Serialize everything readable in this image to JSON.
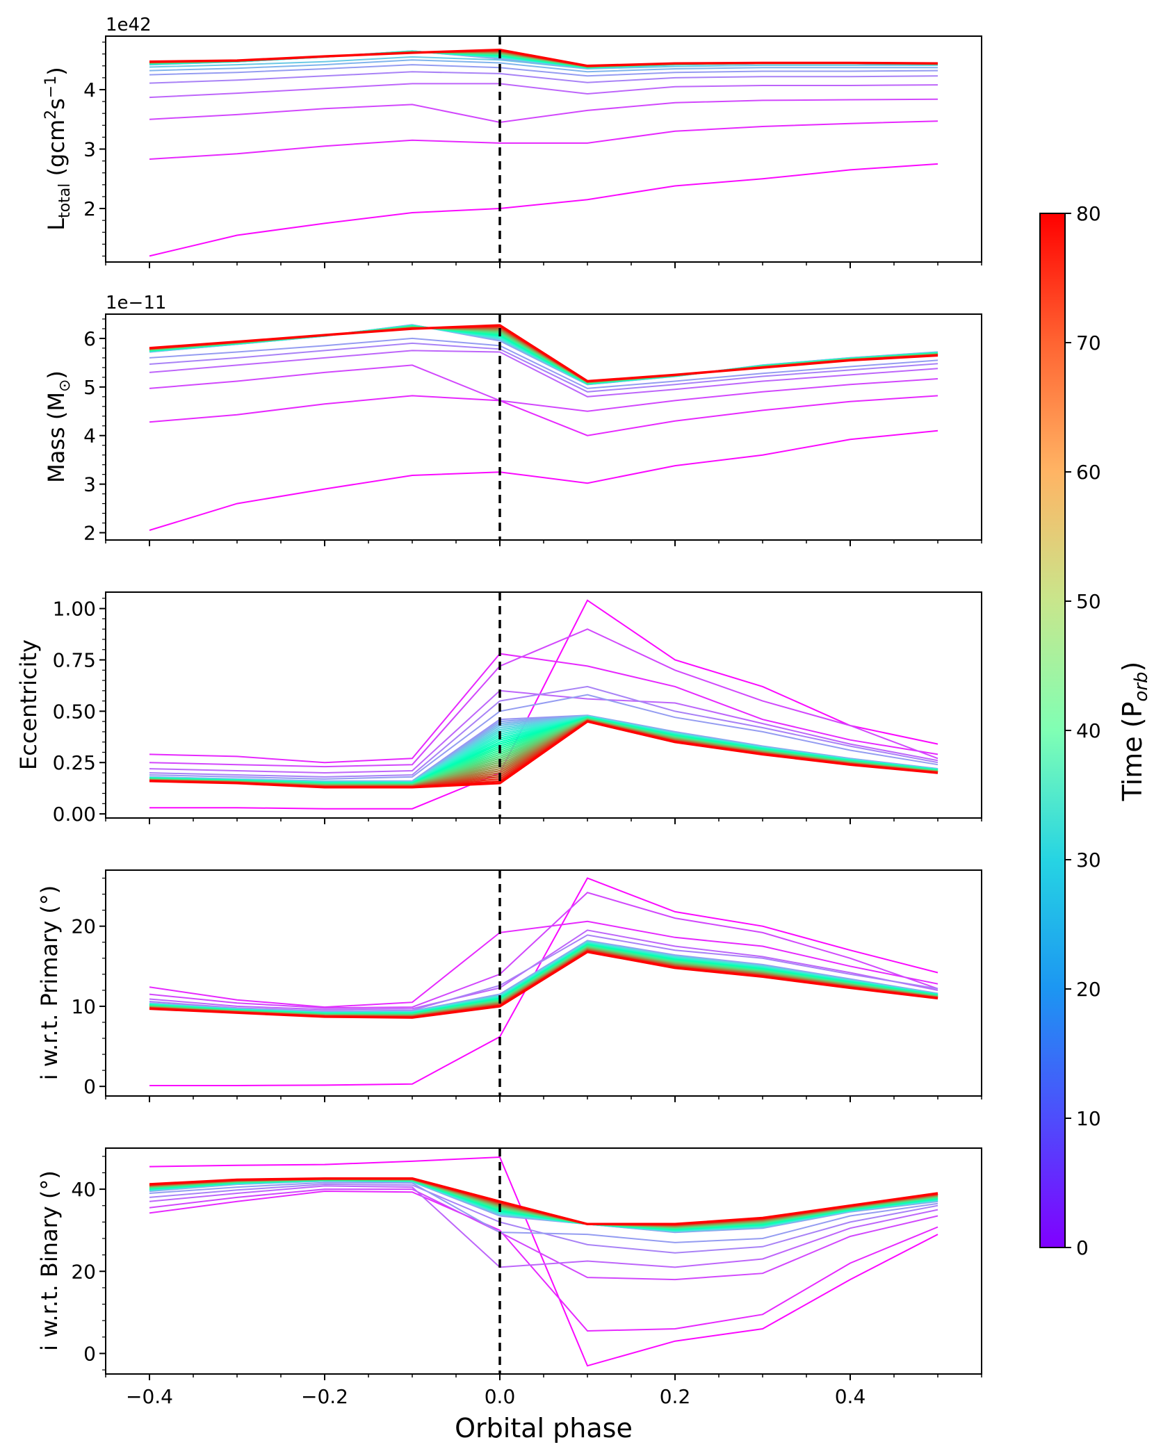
{
  "chart_data": {
    "type": "line",
    "xlabel": "Orbital phase",
    "x": [
      -0.4,
      -0.3,
      -0.2,
      -0.1,
      0.0,
      0.1,
      0.2,
      0.3,
      0.4,
      0.5
    ],
    "xlim": [
      -0.45,
      0.55
    ],
    "xticks": [
      -0.4,
      -0.2,
      0.0,
      0.2,
      0.4
    ],
    "xtick_labels": [
      "−0.4",
      "−0.2",
      "0.0",
      "0.2",
      "0.4"
    ],
    "vertical_line": {
      "x": 0.0,
      "style": "dashed",
      "color": "#000000"
    },
    "colorbar": {
      "label": "Time (P",
      "label_sub": "orb",
      "label_close": ")",
      "range": [
        0,
        80
      ],
      "ticks": [
        "0",
        "10",
        "20",
        "30",
        "40",
        "50",
        "60",
        "70",
        "80"
      ],
      "colormap": "rainbow"
    },
    "panels": [
      {
        "name": "l-total",
        "ylabel_main": "L",
        "ylabel_sub": "total",
        "ylabel_rest": " (gcm",
        "ylabel_sup1": "2",
        "ylabel_mid": "s",
        "ylabel_sup2": "−1",
        "ylabel_end": ")",
        "offset": "1e42",
        "ylim": [
          1.1,
          4.9
        ],
        "yticks": [
          2,
          3,
          4
        ],
        "ytick_labels": [
          "2",
          "3",
          "4"
        ],
        "early": [
          [
            1.2,
            1.55,
            1.75,
            1.93,
            2.0,
            2.15,
            2.38,
            2.5,
            2.65,
            2.75
          ],
          [
            2.83,
            2.92,
            3.05,
            3.15,
            3.1,
            3.1,
            3.3,
            3.38,
            3.43,
            3.47
          ],
          [
            3.5,
            3.58,
            3.68,
            3.75,
            3.45,
            3.65,
            3.78,
            3.82,
            3.83,
            3.84
          ],
          [
            3.87,
            3.94,
            4.02,
            4.1,
            4.1,
            3.93,
            4.05,
            4.07,
            4.07,
            4.08
          ],
          [
            4.11,
            4.16,
            4.23,
            4.3,
            4.27,
            4.12,
            4.2,
            4.22,
            4.22,
            4.23
          ],
          [
            4.25,
            4.29,
            4.35,
            4.42,
            4.37,
            4.23,
            4.29,
            4.31,
            4.31,
            4.32
          ],
          [
            4.32,
            4.36,
            4.42,
            4.5,
            4.45,
            4.3,
            4.35,
            4.37,
            4.37,
            4.37
          ],
          [
            4.38,
            4.42,
            4.47,
            4.55,
            4.5,
            4.35,
            4.39,
            4.41,
            4.41,
            4.41
          ]
        ],
        "start": [
          4.42,
          4.47,
          4.55,
          4.65,
          4.52,
          4.36,
          4.42,
          4.44,
          4.44,
          4.42
        ],
        "end": [
          4.47,
          4.49,
          4.56,
          4.62,
          4.67,
          4.4,
          4.44,
          4.45,
          4.45,
          4.44
        ]
      },
      {
        "name": "mass",
        "ylabel_main": "Mass  (M",
        "ylabel_sub": "⊙",
        "ylabel_end": ")",
        "offset": "1e−11",
        "ylim": [
          1.85,
          6.5
        ],
        "yticks": [
          2,
          3,
          4,
          5,
          6
        ],
        "ytick_labels": [
          "2",
          "3",
          "4",
          "5",
          "6"
        ],
        "early": [
          [
            2.05,
            2.6,
            2.9,
            3.18,
            3.25,
            3.02,
            3.38,
            3.6,
            3.92,
            4.1
          ],
          [
            4.28,
            4.43,
            4.65,
            4.82,
            4.72,
            4.0,
            4.3,
            4.52,
            4.7,
            4.82
          ],
          [
            4.97,
            5.12,
            5.3,
            5.45,
            4.72,
            4.5,
            4.72,
            4.9,
            5.05,
            5.17
          ],
          [
            5.3,
            5.45,
            5.6,
            5.75,
            5.72,
            4.8,
            4.95,
            5.12,
            5.25,
            5.38
          ],
          [
            5.47,
            5.6,
            5.75,
            5.9,
            5.78,
            4.9,
            5.05,
            5.22,
            5.35,
            5.48
          ],
          [
            5.6,
            5.72,
            5.85,
            6.0,
            5.85,
            4.97,
            5.12,
            5.28,
            5.42,
            5.55
          ]
        ],
        "start": [
          5.72,
          5.88,
          6.05,
          6.28,
          5.95,
          5.05,
          5.22,
          5.45,
          5.6,
          5.72
        ],
        "end": [
          5.8,
          5.93,
          6.07,
          6.2,
          6.27,
          5.12,
          5.25,
          5.4,
          5.55,
          5.65
        ]
      },
      {
        "name": "eccentricity",
        "ylabel_main": "Eccentricity",
        "offset": "",
        "ylim": [
          -0.02,
          1.08
        ],
        "yticks": [
          0.0,
          0.25,
          0.5,
          0.75,
          1.0
        ],
        "ytick_labels": [
          "0.00",
          "0.25",
          "0.50",
          "0.75",
          "1.00"
        ],
        "early": [
          [
            0.03,
            0.03,
            0.025,
            0.025,
            0.2,
            1.04,
            0.75,
            0.62,
            0.43,
            0.34
          ],
          [
            0.29,
            0.28,
            0.25,
            0.27,
            0.78,
            0.72,
            0.62,
            0.46,
            0.36,
            0.29
          ],
          [
            0.25,
            0.24,
            0.23,
            0.24,
            0.72,
            0.9,
            0.7,
            0.55,
            0.43,
            0.27
          ],
          [
            0.22,
            0.21,
            0.2,
            0.21,
            0.6,
            0.56,
            0.54,
            0.44,
            0.34,
            0.26
          ],
          [
            0.2,
            0.19,
            0.18,
            0.19,
            0.55,
            0.62,
            0.5,
            0.42,
            0.33,
            0.25
          ],
          [
            0.19,
            0.18,
            0.17,
            0.18,
            0.5,
            0.58,
            0.47,
            0.4,
            0.31,
            0.24
          ]
        ],
        "start": [
          0.18,
          0.17,
          0.16,
          0.16,
          0.46,
          0.48,
          0.4,
          0.33,
          0.27,
          0.22
        ],
        "end": [
          0.16,
          0.15,
          0.13,
          0.13,
          0.15,
          0.45,
          0.35,
          0.29,
          0.24,
          0.2
        ]
      },
      {
        "name": "inclination-primary",
        "ylabel_main": "i w.r.t. Primary (°)",
        "offset": "",
        "ylim": [
          -1.2,
          27.0
        ],
        "yticks": [
          0,
          10,
          20
        ],
        "ytick_labels": [
          "0",
          "10",
          "20"
        ],
        "early": [
          [
            0.1,
            0.1,
            0.15,
            0.3,
            6.2,
            26.0,
            21.8,
            20.0,
            17.0,
            14.2
          ],
          [
            12.4,
            10.8,
            9.9,
            10.5,
            19.2,
            20.6,
            18.6,
            17.5,
            15.0,
            12.8
          ],
          [
            11.5,
            10.4,
            9.8,
            9.9,
            14.0,
            24.2,
            21.0,
            19.2,
            16.0,
            12.2
          ],
          [
            10.9,
            10.0,
            9.6,
            9.7,
            12.3,
            19.5,
            17.5,
            16.2,
            14.2,
            12.0
          ],
          [
            10.6,
            9.8,
            9.4,
            9.5,
            12.6,
            18.9,
            17.0,
            16.0,
            14.0,
            12.2
          ]
        ],
        "start": [
          10.4,
          9.7,
          9.3,
          9.4,
          11.5,
          18.2,
          16.4,
          15.2,
          13.4,
          11.6
        ],
        "end": [
          9.7,
          9.2,
          8.7,
          8.6,
          10.0,
          16.8,
          14.8,
          13.7,
          12.3,
          11.0
        ]
      },
      {
        "name": "inclination-binary",
        "ylabel_main": "i w.r.t. Binary (°)",
        "offset": "",
        "ylim": [
          -5.0,
          50.0
        ],
        "yticks": [
          0,
          20,
          40
        ],
        "ytick_labels": [
          "0",
          "20",
          "40"
        ],
        "early": [
          [
            45.5,
            45.8,
            46.0,
            46.8,
            47.8,
            -3.0,
            3.0,
            6.0,
            18.0,
            29.0
          ],
          [
            34.2,
            37.0,
            39.5,
            39.3,
            30.0,
            5.5,
            6.0,
            9.5,
            22.0,
            30.8
          ],
          [
            35.5,
            38.0,
            40.0,
            40.0,
            29.5,
            18.5,
            18.0,
            19.5,
            28.5,
            33.5
          ],
          [
            37.0,
            39.0,
            40.8,
            40.5,
            21.0,
            22.5,
            21.0,
            23.0,
            30.5,
            35.0
          ],
          [
            38.0,
            39.8,
            41.2,
            41.0,
            32.0,
            26.5,
            24.5,
            26.0,
            32.0,
            36.0
          ],
          [
            39.0,
            40.5,
            41.6,
            41.5,
            29.5,
            29.0,
            27.0,
            28.0,
            33.5,
            36.5
          ]
        ],
        "start": [
          39.5,
          41.2,
          42.0,
          41.8,
          33.5,
          31.5,
          29.5,
          30.5,
          34.5,
          37.0
        ],
        "end": [
          41.2,
          42.3,
          42.6,
          42.6,
          37.0,
          31.5,
          31.5,
          33.0,
          36.0,
          39.0
        ]
      }
    ]
  }
}
